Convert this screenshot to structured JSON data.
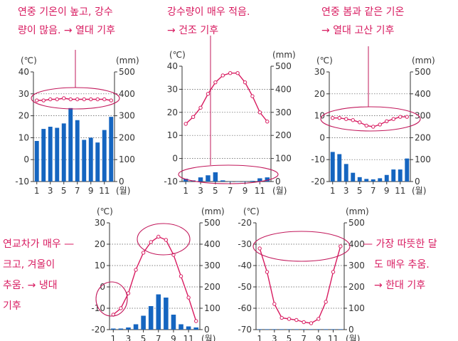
{
  "annotations": {
    "tropical": [
      "연중 기온이 높고, 강수",
      "량이 많음. → 열대 기후"
    ],
    "dry": [
      "강수량이 매우 적음.",
      "→ 건조 기후"
    ],
    "highland": [
      "연중 봄과 같은 기온",
      "→ 열대 고산 기후"
    ],
    "cold": [
      "연교차가 매우 —",
      "크고, 겨울이",
      "추움. → 냉대",
      "기후"
    ],
    "polar": [
      "— 가장 따뜻한 달",
      "도 매우 추움.",
      "→ 한대 기후"
    ]
  },
  "colors": {
    "line": "#d81b60",
    "bar": "#1565c0",
    "ellipse": "#c2185b"
  },
  "chart_data": [
    {
      "type": "bar+line",
      "temp_unit": "(℃)",
      "precip_unit": "(mm)",
      "month_unit": "(월)",
      "temp_ticks": [
        "40",
        "30",
        "20",
        "10",
        "0",
        "-10"
      ],
      "precip_ticks": [
        "500",
        "400",
        "300",
        "200",
        "100",
        "0"
      ],
      "month_ticks": [
        "1",
        "3",
        "5",
        "7",
        "9",
        "11"
      ],
      "temp_range": [
        -10,
        40
      ],
      "precip_range": [
        0,
        500
      ],
      "temperature": [
        27,
        27,
        27.5,
        27.5,
        28,
        27.5,
        27.5,
        27.5,
        27.5,
        27.5,
        27.5,
        27
      ],
      "precipitation": [
        185,
        240,
        250,
        245,
        265,
        335,
        280,
        190,
        200,
        178,
        235,
        295
      ]
    },
    {
      "type": "bar+line",
      "temp_unit": "(℃)",
      "precip_unit": "(mm)",
      "month_unit": "(월)",
      "temp_ticks": [
        "40",
        "30",
        "20",
        "10",
        "0",
        "-10"
      ],
      "precip_ticks": [
        "500",
        "400",
        "300",
        "200",
        "100",
        "0"
      ],
      "month_ticks": [
        "1",
        "3",
        "5",
        "7",
        "9",
        "11"
      ],
      "temp_range": [
        -10,
        40
      ],
      "precip_range": [
        0,
        500
      ],
      "temperature": [
        15,
        18,
        22,
        28,
        33,
        36,
        37,
        37,
        33,
        27,
        20,
        16
      ],
      "precipitation": [
        12,
        5,
        18,
        27,
        40,
        5,
        0,
        0,
        0,
        3,
        14,
        18
      ]
    },
    {
      "type": "bar+line",
      "temp_unit": "(℃)",
      "precip_unit": "(mm)",
      "month_unit": "(월)",
      "temp_ticks": [
        "30",
        "20",
        "10",
        "0",
        "-10",
        "-20"
      ],
      "precip_ticks": [
        "500",
        "400",
        "300",
        "200",
        "100",
        "0"
      ],
      "month_ticks": [
        "1",
        "3",
        "5",
        "7",
        "9",
        "11"
      ],
      "temp_range": [
        -20,
        30
      ],
      "precip_range": [
        0,
        500
      ],
      "temperature": [
        9,
        9,
        8.5,
        8,
        7,
        5.5,
        5,
        6,
        7.5,
        8.5,
        9.5,
        9.5
      ],
      "precipitation": [
        135,
        125,
        80,
        40,
        20,
        12,
        10,
        15,
        30,
        55,
        55,
        105
      ]
    },
    {
      "type": "bar+line",
      "temp_unit": "(℃)",
      "precip_unit": "(mm)",
      "month_unit": "(월)",
      "temp_ticks": [
        "30",
        "20",
        "10",
        "0",
        "-10",
        "-20"
      ],
      "precip_ticks": [
        "500",
        "400",
        "300",
        "200",
        "100",
        "0"
      ],
      "month_ticks": [
        "1",
        "3",
        "5",
        "7",
        "9",
        "11"
      ],
      "temp_range": [
        -20,
        30
      ],
      "precip_range": [
        0,
        500
      ],
      "temperature": [
        -13,
        -10,
        -3,
        8,
        16,
        21,
        23.5,
        22,
        15,
        5,
        -5,
        -16
      ],
      "precipitation": [
        5,
        5,
        10,
        25,
        65,
        110,
        165,
        150,
        70,
        25,
        15,
        10
      ]
    },
    {
      "type": "bar+line",
      "temp_unit": "(℃)",
      "precip_unit": "(mm)",
      "month_unit": "(월)",
      "temp_ticks": [
        "-20",
        "-30",
        "-40",
        "-50",
        "-60",
        "-70"
      ],
      "precip_ticks": [
        "500",
        "400",
        "300",
        "200",
        "100",
        "0"
      ],
      "month_ticks": [
        "1",
        "3",
        "5",
        "7",
        "9",
        "11"
      ],
      "temp_range": [
        -70,
        -20
      ],
      "precip_range": [
        0,
        500
      ],
      "temperature": [
        -32,
        -43,
        -58,
        -64.5,
        -65,
        -65.5,
        -66.5,
        -67,
        -65,
        -57,
        -43,
        -31
      ],
      "precipitation": [
        2,
        2,
        2,
        2,
        2,
        2,
        2,
        2,
        2,
        2,
        2,
        2
      ]
    }
  ]
}
